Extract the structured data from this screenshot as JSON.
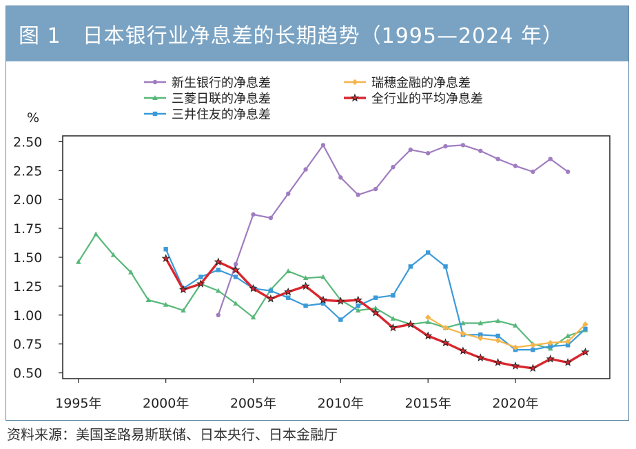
{
  "title": "图 1　日本银行业净息差的长期趋势（1995—2024 年）",
  "source": "资料来源：美国圣路易斯联储、日本央行、日本金融厅",
  "colors": {
    "header_bg": "#7aa3c3",
    "shinsei": "#a07cc0",
    "mufg": "#58b87a",
    "smbc": "#3b9ad8",
    "mizuho": "#f5b54a",
    "industry": "#d9262e"
  },
  "chart_data": {
    "type": "line",
    "ylabel": "%",
    "ylim": [
      0.45,
      2.55
    ],
    "xlim": [
      1994.1,
      2025.4
    ],
    "y_ticks": [
      "0.50",
      "0.75",
      "1.00",
      "1.25",
      "1.50",
      "1.75",
      "2.00",
      "2.25",
      "2.50"
    ],
    "x_ticks": [
      "1995年",
      "2000年",
      "2005年",
      "2010年",
      "2015年",
      "2020年"
    ],
    "series": [
      {
        "name": "新生银行的净息差",
        "color": "#a07cc0",
        "marker": "circle",
        "x": [
          2003,
          2004,
          2005,
          2006,
          2007,
          2008,
          2009,
          2010,
          2011,
          2012,
          2013,
          2014,
          2015,
          2016,
          2017,
          2018,
          2019,
          2020,
          2021,
          2022,
          2023
        ],
        "y": [
          1.0,
          1.44,
          1.87,
          1.84,
          2.05,
          2.26,
          2.47,
          2.19,
          2.04,
          2.09,
          2.28,
          2.43,
          2.4,
          2.46,
          2.47,
          2.42,
          2.35,
          2.29,
          2.24,
          2.35,
          2.24
        ]
      },
      {
        "name": "瑞穗金融的净息差",
        "color": "#f5b54a",
        "marker": "diamond",
        "x": [
          2015,
          2016,
          2017,
          2018,
          2019,
          2020,
          2021,
          2022,
          2023,
          2024
        ],
        "y": [
          0.98,
          0.89,
          0.84,
          0.8,
          0.78,
          0.72,
          0.74,
          0.76,
          0.77,
          0.92
        ]
      },
      {
        "name": "三菱日联的净息差",
        "color": "#58b87a",
        "marker": "triangle",
        "x": [
          1995,
          1996,
          1997,
          1998,
          1999,
          2000,
          2001,
          2002,
          2003,
          2004,
          2005,
          2006,
          2007,
          2008,
          2009,
          2010,
          2011,
          2012,
          2013,
          2014,
          2015,
          2016,
          2017,
          2018,
          2019,
          2020,
          2021,
          2022,
          2023,
          2024
        ],
        "y": [
          1.46,
          1.7,
          1.52,
          1.37,
          1.13,
          1.09,
          1.04,
          1.27,
          1.21,
          1.1,
          0.98,
          1.22,
          1.38,
          1.32,
          1.33,
          1.13,
          1.04,
          1.06,
          0.97,
          0.92,
          0.94,
          0.89,
          0.93,
          0.93,
          0.95,
          0.91,
          0.75,
          0.71,
          0.82,
          0.87
        ]
      },
      {
        "name": "全行业的平均净息差",
        "color": "#d9262e",
        "marker": "star",
        "x": [
          2000,
          2001,
          2002,
          2003,
          2004,
          2005,
          2006,
          2007,
          2008,
          2009,
          2010,
          2011,
          2012,
          2013,
          2014,
          2015,
          2016,
          2017,
          2018,
          2019,
          2020,
          2021,
          2022,
          2023,
          2024
        ],
        "y": [
          1.49,
          1.22,
          1.27,
          1.46,
          1.39,
          1.23,
          1.14,
          1.2,
          1.25,
          1.13,
          1.12,
          1.13,
          1.02,
          0.89,
          0.92,
          0.82,
          0.76,
          0.69,
          0.63,
          0.59,
          0.56,
          0.54,
          0.62,
          0.59,
          0.68
        ]
      },
      {
        "name": "三井住友的净息差",
        "color": "#3b9ad8",
        "marker": "square",
        "x": [
          2000,
          2001,
          2002,
          2003,
          2004,
          2005,
          2006,
          2007,
          2008,
          2009,
          2010,
          2011,
          2012,
          2013,
          2014,
          2015,
          2016,
          2017,
          2018,
          2019,
          2020,
          2021,
          2022,
          2023,
          2024
        ],
        "y": [
          1.57,
          1.23,
          1.33,
          1.39,
          1.33,
          1.23,
          1.21,
          1.15,
          1.08,
          1.1,
          0.96,
          1.08,
          1.15,
          1.17,
          1.42,
          1.54,
          1.42,
          0.83,
          0.83,
          0.82,
          0.7,
          0.7,
          0.73,
          0.74,
          0.88
        ]
      }
    ]
  }
}
